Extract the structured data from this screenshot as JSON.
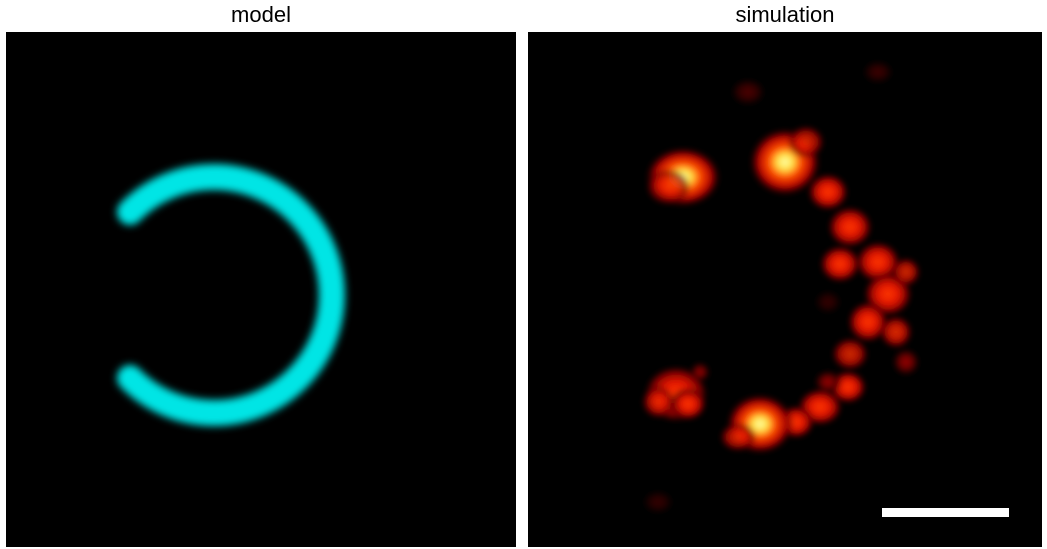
{
  "panels": {
    "left": {
      "title": "model",
      "ring_color": "#00e5e5"
    },
    "right": {
      "title": "simulation",
      "colormap": "hot",
      "scale_bar_color": "#ffffff"
    }
  },
  "background_color": "#000000"
}
